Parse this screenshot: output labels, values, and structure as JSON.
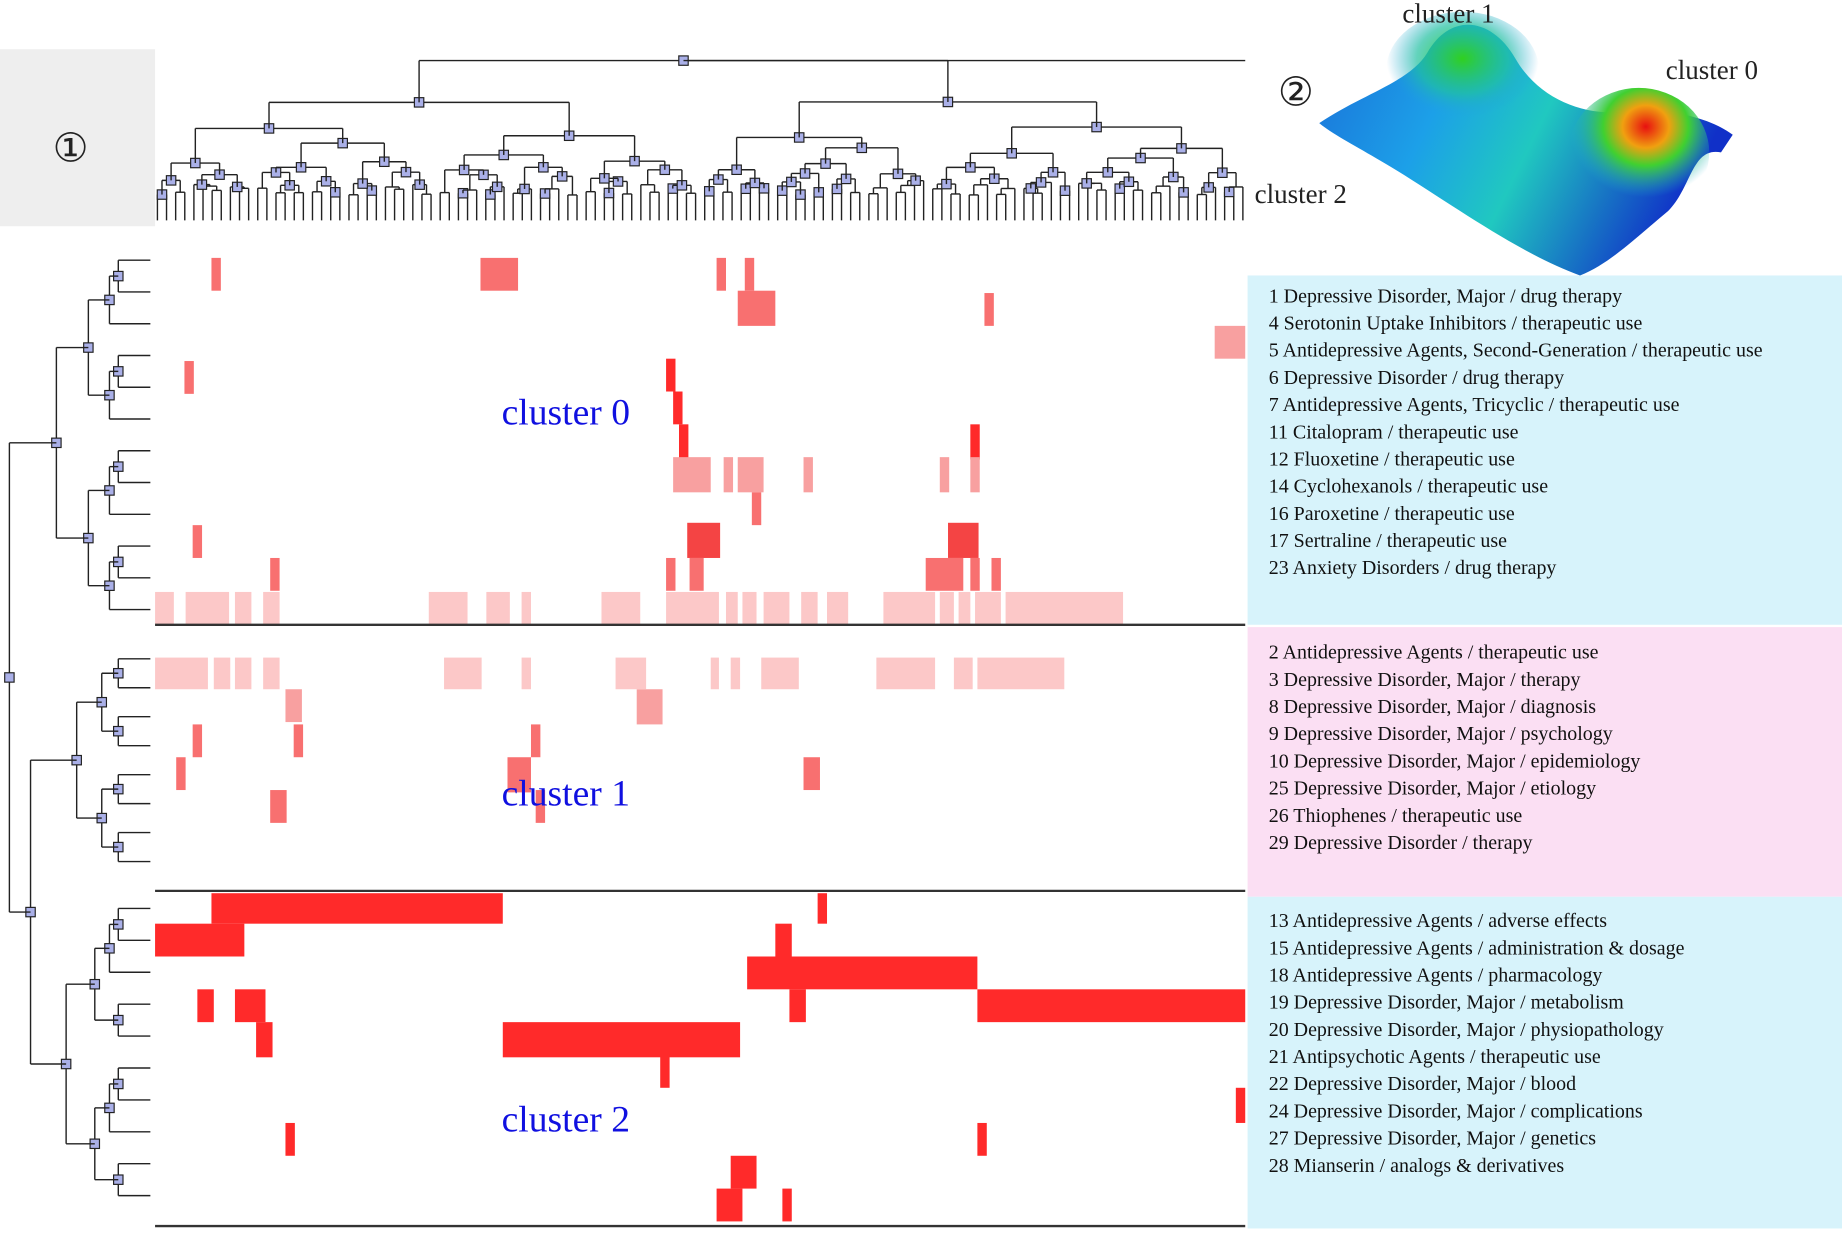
{
  "panel_1": {
    "label": "①"
  },
  "panel_2": {
    "label": "②",
    "peaks": [
      "cluster 1",
      "cluster 0",
      "cluster 2"
    ]
  },
  "clusters": [
    {
      "label": "cluster 0",
      "terms": [
        "1 Depressive Disorder, Major / drug therapy",
        "4 Serotonin Uptake Inhibitors / therapeutic use",
        "5 Antidepressive Agents, Second-Generation / therapeutic use",
        "6 Depressive Disorder / drug therapy",
        "7 Antidepressive Agents, Tricyclic / therapeutic use",
        "11 Citalopram / therapeutic use",
        "12 Fluoxetine / therapeutic use",
        "14 Cyclohexanols / therapeutic use",
        "16 Paroxetine / therapeutic use",
        "17 Sertraline / therapeutic use",
        "23 Anxiety Disorders / drug therapy"
      ]
    },
    {
      "label": "cluster 1",
      "terms": [
        "2 Antidepressive Agents / therapeutic use",
        "3 Depressive Disorder, Major / therapy",
        "8 Depressive Disorder, Major / diagnosis",
        "9 Depressive Disorder, Major / psychology",
        "10 Depressive Disorder, Major / epidemiology",
        "25 Depressive Disorder, Major / etiology",
        "26 Thiophenes / therapeutic use",
        "29 Depressive Disorder / therapy"
      ]
    },
    {
      "label": "cluster 2",
      "terms": [
        "13 Antidepressive Agents / adverse effects",
        "15 Antidepressive Agents / administration & dosage",
        "18 Antidepressive Agents / pharmacology",
        "19 Depressive Disorder, Major / metabolism",
        "20 Depressive Disorder, Major / physiopathology",
        "21 Antipsychotic Agents / therapeutic use",
        "22 Depressive Disorder, Major / blood",
        "24 Depressive Disorder, Major / complications",
        "27 Depressive Disorder, Major / genetics",
        "28 Mianserin / analogs & derivatives"
      ]
    }
  ]
}
